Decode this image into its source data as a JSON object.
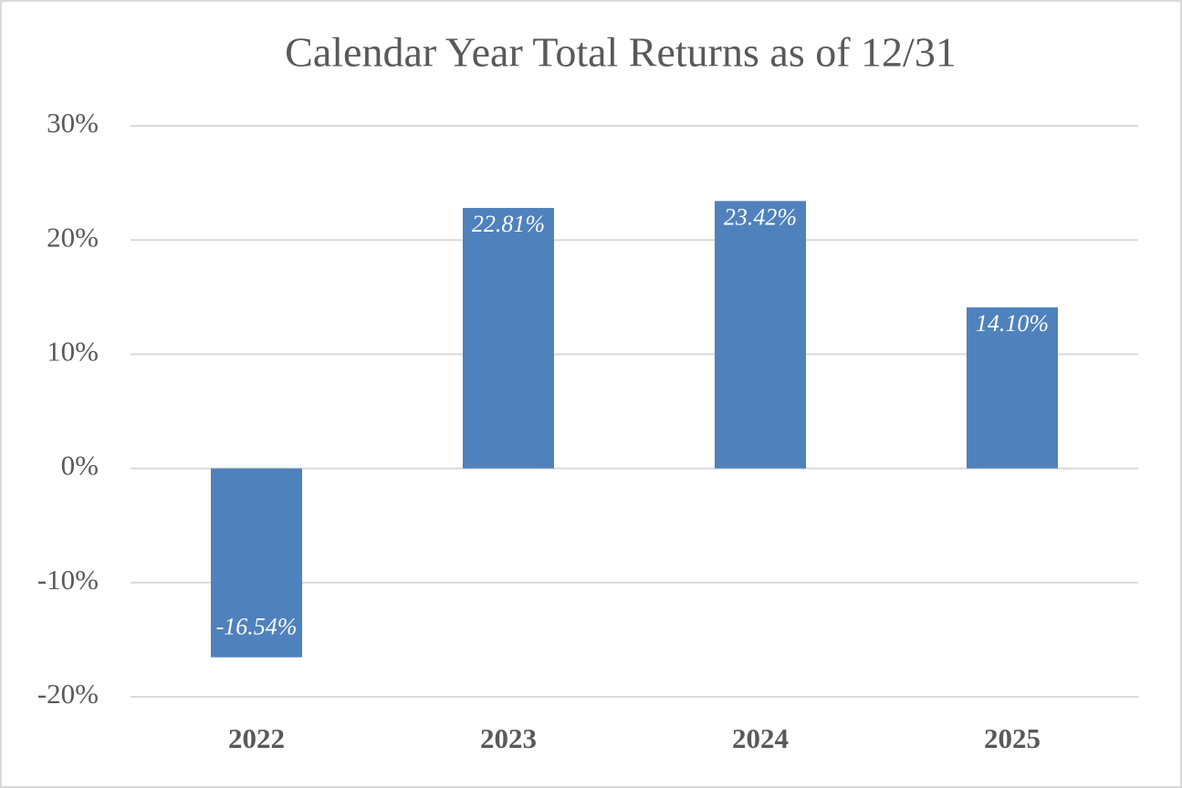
{
  "chart_data": {
    "type": "bar",
    "title": "Calendar Year Total Returns as of 12/31",
    "categories": [
      "2022",
      "2023",
      "2024",
      "2025"
    ],
    "values": [
      -16.54,
      22.81,
      23.42,
      14.1
    ],
    "value_labels": [
      "-16.54%",
      "22.81%",
      "23.42%",
      "14.10%"
    ],
    "color": "#4f81bd",
    "ylim": [
      -20,
      30
    ],
    "yticks": [
      {
        "value": -20,
        "label": "-20%"
      },
      {
        "value": -10,
        "label": "-10%"
      },
      {
        "value": 0,
        "label": "0%"
      },
      {
        "value": 10,
        "label": "10%"
      },
      {
        "value": 20,
        "label": "20%"
      },
      {
        "value": 30,
        "label": "30%"
      }
    ],
    "grid": true
  }
}
